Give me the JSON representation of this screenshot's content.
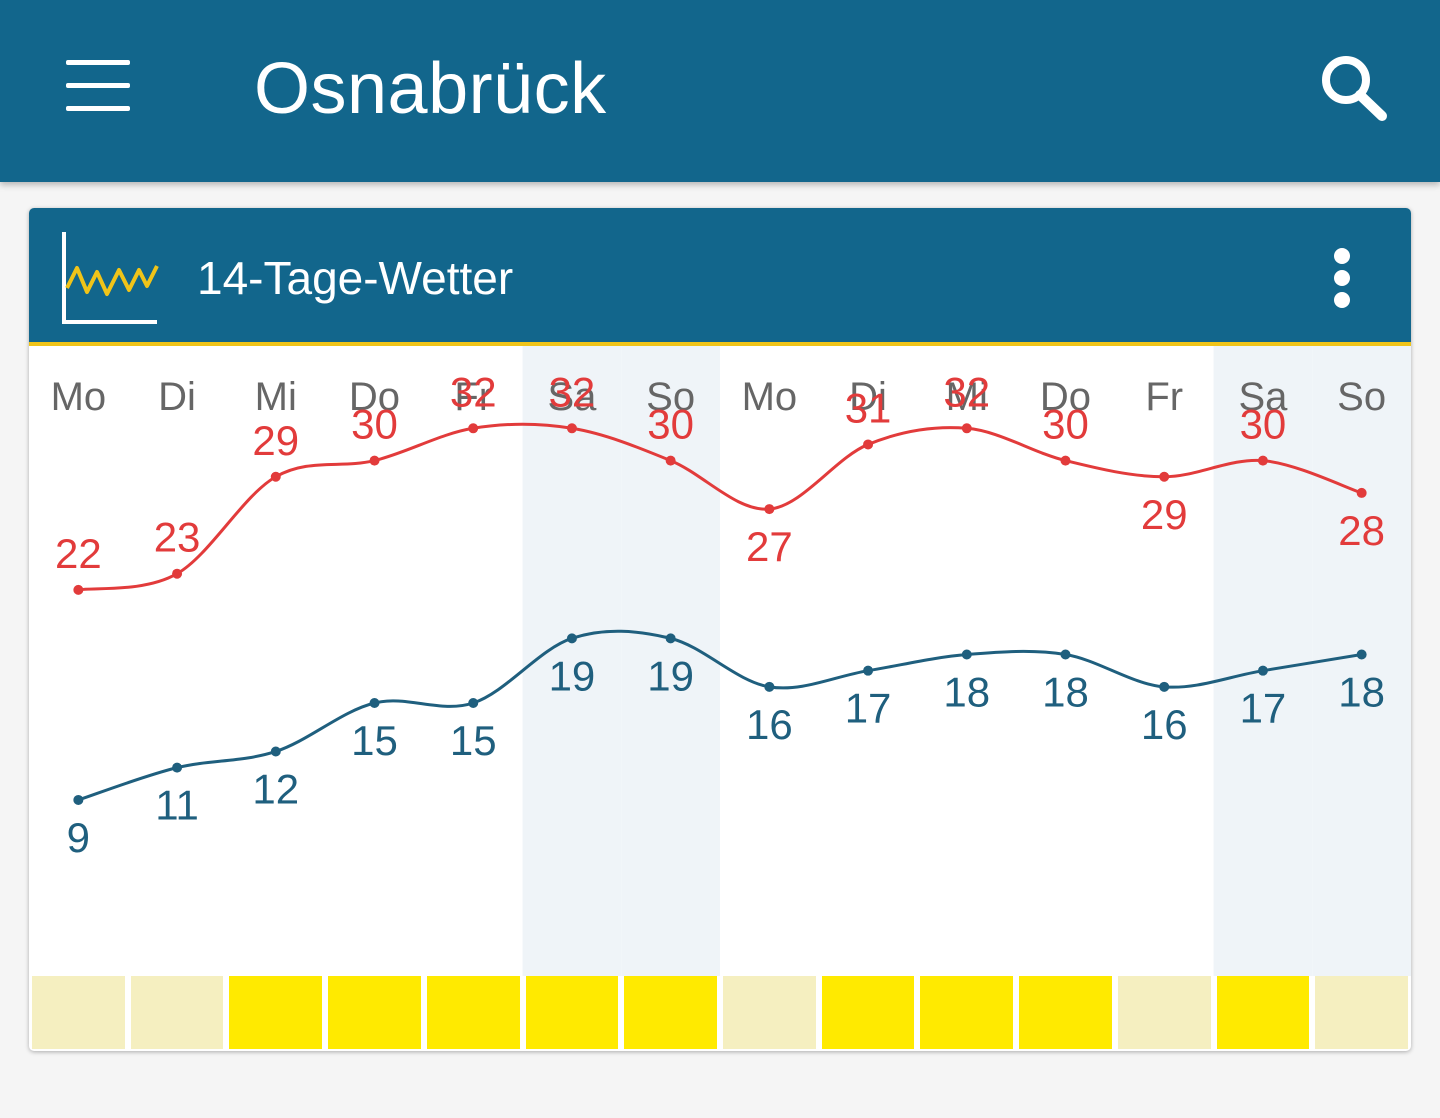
{
  "app_bar": {
    "title": "Osnabrück",
    "menu_icon": "hamburger-menu-icon",
    "search_icon": "search-icon"
  },
  "card": {
    "title": "14-Tage-Wetter",
    "icon": "line-chart-icon",
    "more_icon": "more-vertical-icon"
  },
  "colors": {
    "primary": "#12668c",
    "accent": "#f0c419",
    "max_line": "#e23b3b",
    "min_line": "#1f5f7e",
    "weekend_shade": "#eff4f8",
    "sun_high": "#ffea00",
    "sun_low": "#f5efc0"
  },
  "chart_data": {
    "type": "line",
    "categories": [
      "Mo",
      "Di",
      "Mi",
      "Do",
      "Fr",
      "Sa",
      "So",
      "Mo",
      "Di",
      "Mi",
      "Do",
      "Fr",
      "Sa",
      "So"
    ],
    "weekend_days": [
      5,
      6,
      12,
      13
    ],
    "series": [
      {
        "values": [
          22,
          23,
          29,
          30,
          32,
          32,
          30,
          27,
          31,
          32,
          30,
          29,
          30,
          28
        ]
      },
      {
        "values": [
          9,
          11,
          12,
          15,
          15,
          19,
          19,
          16,
          17,
          18,
          18,
          16,
          17,
          18
        ]
      }
    ],
    "sunshine": [
      "low",
      "low",
      "high",
      "high",
      "high",
      "high",
      "high",
      "low",
      "high",
      "high",
      "high",
      "low",
      "high",
      "low"
    ]
  }
}
